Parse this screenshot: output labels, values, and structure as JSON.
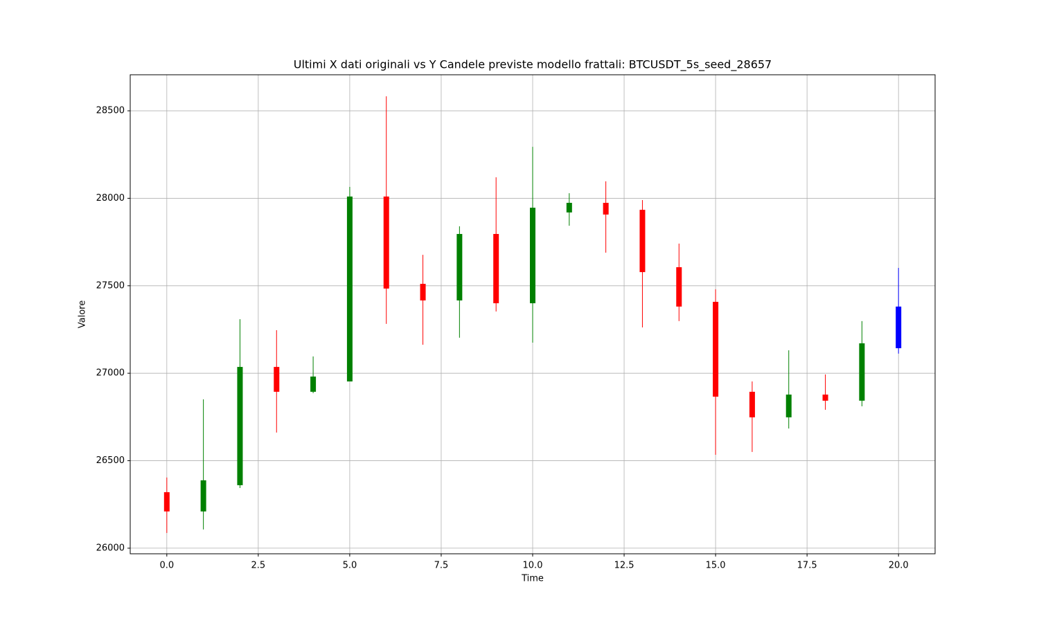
{
  "chart_data": {
    "type": "candlestick",
    "title": "Ultimi X dati originali vs Y Candele previste modello frattali: BTCUSDT_5s_seed_28657",
    "xlabel": "Time",
    "ylabel": "Valore",
    "x": [
      0,
      1,
      2,
      3,
      4,
      5,
      6,
      7,
      8,
      9,
      10,
      11,
      12,
      13,
      14,
      15,
      16,
      17,
      18,
      19,
      20
    ],
    "open": [
      26320,
      26210,
      26360,
      27036,
      26894,
      26953,
      28010,
      27511,
      27416,
      27796,
      27400,
      27919,
      27974,
      27934,
      27606,
      27408,
      26894,
      26748,
      26878,
      26843,
      27143
    ],
    "high": [
      26404,
      26851,
      27309,
      27246,
      27096,
      28065,
      28583,
      27677,
      27840,
      28120,
      28294,
      28029,
      28097,
      27990,
      27741,
      27480,
      26953,
      27131,
      26993,
      27298,
      27602
    ],
    "low": [
      26087,
      26107,
      26344,
      26661,
      26886,
      26953,
      27282,
      27163,
      27203,
      27353,
      27175,
      27843,
      27689,
      27262,
      27298,
      26534,
      26550,
      26684,
      26791,
      26811,
      27112
    ],
    "close": [
      26210,
      26388,
      27036,
      26894,
      26981,
      28010,
      27484,
      27416,
      27796,
      27400,
      27946,
      27974,
      27907,
      27578,
      27381,
      26866,
      26748,
      26878,
      26843,
      27171,
      27381
    ],
    "colors": [
      "red",
      "green",
      "green",
      "red",
      "green",
      "green",
      "red",
      "red",
      "green",
      "red",
      "green",
      "green",
      "red",
      "red",
      "red",
      "red",
      "red",
      "green",
      "red",
      "green",
      "blue"
    ],
    "xlim": [
      -1,
      21
    ],
    "ylim": [
      25968,
      28706
    ],
    "xticks": [
      {
        "value": 0,
        "label": "0.0"
      },
      {
        "value": 2.5,
        "label": "2.5"
      },
      {
        "value": 5,
        "label": "5.0"
      },
      {
        "value": 7.5,
        "label": "7.5"
      },
      {
        "value": 10,
        "label": "10.0"
      },
      {
        "value": 12.5,
        "label": "12.5"
      },
      {
        "value": 15,
        "label": "15.0"
      },
      {
        "value": 17.5,
        "label": "17.5"
      },
      {
        "value": 20,
        "label": "20.0"
      }
    ],
    "yticks": [
      26000,
      26500,
      27000,
      27500,
      28000,
      28500
    ],
    "grid": true
  }
}
